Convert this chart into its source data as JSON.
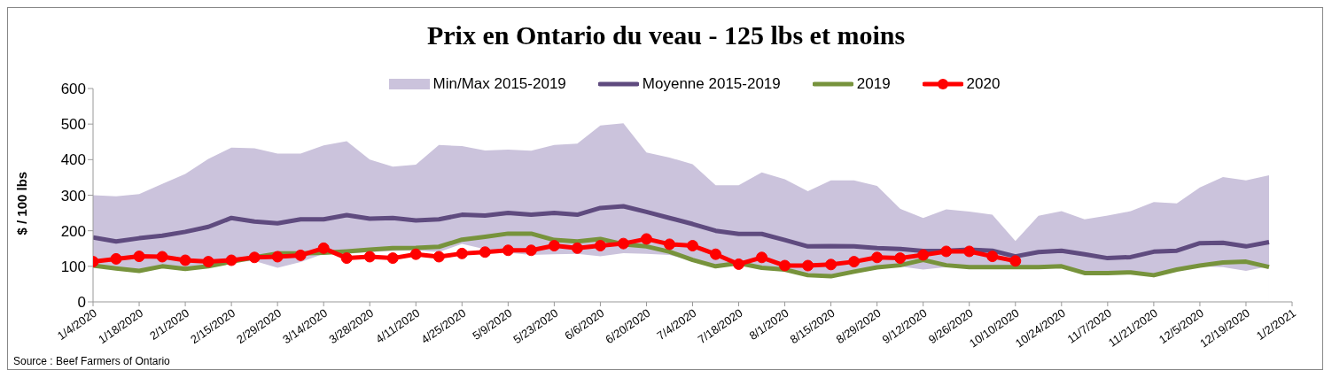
{
  "chart_data": {
    "type": "line",
    "title": "Prix en Ontario du veau - 125 lbs et moins",
    "ylabel": "$ / 100 lbs",
    "annotations": [
      "Source : Beef Farmers of Ontario"
    ],
    "x": [
      "2020-01-04",
      "2020-01-11",
      "2020-01-18",
      "2020-01-25",
      "2020-02-01",
      "2020-02-08",
      "2020-02-15",
      "2020-02-22",
      "2020-02-29",
      "2020-03-07",
      "2020-03-14",
      "2020-03-21",
      "2020-03-28",
      "2020-04-04",
      "2020-04-11",
      "2020-04-18",
      "2020-04-25",
      "2020-05-02",
      "2020-05-09",
      "2020-05-16",
      "2020-05-23",
      "2020-05-30",
      "2020-06-06",
      "2020-06-13",
      "2020-06-20",
      "2020-06-27",
      "2020-07-04",
      "2020-07-11",
      "2020-07-18",
      "2020-07-25",
      "2020-08-01",
      "2020-08-08",
      "2020-08-15",
      "2020-08-22",
      "2020-08-29",
      "2020-09-05",
      "2020-09-12",
      "2020-09-19",
      "2020-09-26",
      "2020-10-03",
      "2020-10-10",
      "2020-10-17",
      "2020-10-24",
      "2020-10-31",
      "2020-11-07",
      "2020-11-14",
      "2020-11-21",
      "2020-11-28",
      "2020-12-05",
      "2020-12-12",
      "2020-12-19",
      "2020-12-26"
    ],
    "series": [
      {
        "name": "Min/Max 2015-2019",
        "type": "area",
        "color": "#cbc3dc",
        "values": [
          300,
          297,
          303,
          332,
          360,
          402,
          434,
          432,
          417,
          417,
          440,
          452,
          400,
          380,
          386,
          441,
          438,
          426,
          428,
          425,
          441,
          445,
          496,
          502,
          420,
          406,
          387,
          328,
          328,
          364,
          345,
          311,
          342,
          342,
          326,
          262,
          236,
          260,
          254,
          245,
          171,
          242,
          255,
          232,
          243,
          255,
          281,
          277,
          322,
          351,
          342,
          356
        ]
      },
      {
        "type": "area",
        "color": "#ffffff",
        "values": [
          100,
          95,
          90,
          100,
          95,
          105,
          112,
          115,
          96,
          112,
          135,
          135,
          140,
          143,
          145,
          140,
          163,
          148,
          138,
          132,
          134,
          135,
          128,
          137,
          135,
          132,
          115,
          100,
          105,
          95,
          90,
          78,
          72,
          85,
          95,
          100,
          91,
          98,
          95,
          95,
          95,
          95,
          98,
          80,
          80,
          80,
          75,
          90,
          100,
          98,
          87,
          100
        ]
      },
      {
        "name": "Moyenne 2015-2019",
        "type": "line",
        "color": "#5f4b7f",
        "marker": "none",
        "values": [
          181,
          170,
          179,
          186,
          197,
          211,
          236,
          226,
          221,
          232,
          232,
          244,
          234,
          236,
          229,
          232,
          245,
          243,
          250,
          245,
          250,
          245,
          264,
          269,
          253,
          236,
          219,
          200,
          191,
          191,
          174,
          156,
          157,
          156,
          151,
          149,
          143,
          144,
          147,
          144,
          128,
          140,
          144,
          134,
          123,
          126,
          141,
          144,
          165,
          166,
          156,
          168
        ]
      },
      {
        "name": "2019",
        "type": "line",
        "color": "#77933c",
        "marker": "none",
        "values": [
          102,
          94,
          87,
          100,
          93,
          100,
          113,
          125,
          136,
          136,
          138,
          142,
          147,
          151,
          152,
          155,
          175,
          183,
          192,
          192,
          174,
          170,
          177,
          162,
          156,
          141,
          118,
          100,
          109,
          96,
          91,
          75,
          72,
          85,
          97,
          103,
          118,
          103,
          98,
          98,
          98,
          98,
          100,
          81,
          81,
          83,
          75,
          91,
          102,
          111,
          113,
          98
        ]
      },
      {
        "name": "2020",
        "type": "line",
        "color": "#ff0000",
        "marker": "circle",
        "values": [
          113,
          121,
          128,
          127,
          117,
          113,
          117,
          125,
          127,
          131,
          151,
          123,
          127,
          123,
          134,
          127,
          136,
          140,
          145,
          145,
          158,
          151,
          158,
          164,
          177,
          162,
          158,
          134,
          106,
          125,
          102,
          102,
          105,
          113,
          125,
          123,
          132,
          142,
          142,
          128,
          115,
          null,
          null,
          null,
          null,
          null,
          null,
          null,
          null,
          null,
          null,
          null
        ]
      }
    ],
    "xlim": [
      "2020-01-04",
      "2021-01-02"
    ],
    "xticks": [
      {
        "value": "2020-01-04",
        "label": "1/4/2020"
      },
      {
        "value": "2020-01-18",
        "label": "1/18/2020"
      },
      {
        "value": "2020-02-01",
        "label": "2/1/2020"
      },
      {
        "value": "2020-02-15",
        "label": "2/15/2020"
      },
      {
        "value": "2020-02-29",
        "label": "2/29/2020"
      },
      {
        "value": "2020-03-14",
        "label": "3/14/2020"
      },
      {
        "value": "2020-03-28",
        "label": "3/28/2020"
      },
      {
        "value": "2020-04-11",
        "label": "4/11/2020"
      },
      {
        "value": "2020-04-25",
        "label": "4/25/2020"
      },
      {
        "value": "2020-05-09",
        "label": "5/9/2020"
      },
      {
        "value": "2020-05-23",
        "label": "5/23/2020"
      },
      {
        "value": "2020-06-06",
        "label": "6/6/2020"
      },
      {
        "value": "2020-06-20",
        "label": "6/20/2020"
      },
      {
        "value": "2020-07-04",
        "label": "7/4/2020"
      },
      {
        "value": "2020-07-18",
        "label": "7/18/2020"
      },
      {
        "value": "2020-08-01",
        "label": "8/1/2020"
      },
      {
        "value": "2020-08-15",
        "label": "8/15/2020"
      },
      {
        "value": "2020-08-29",
        "label": "8/29/2020"
      },
      {
        "value": "2020-09-12",
        "label": "9/12/2020"
      },
      {
        "value": "2020-09-26",
        "label": "9/26/2020"
      },
      {
        "value": "2020-10-10",
        "label": "10/10/2020"
      },
      {
        "value": "2020-10-24",
        "label": "10/24/2020"
      },
      {
        "value": "2020-11-07",
        "label": "11/7/2020"
      },
      {
        "value": "2020-11-21",
        "label": "11/21/2020"
      },
      {
        "value": "2020-12-05",
        "label": "12/5/2020"
      },
      {
        "value": "2020-12-19",
        "label": "12/19/2020"
      },
      {
        "value": "2021-01-02",
        "label": "1/2/2021"
      }
    ],
    "ylim": [
      0,
      600
    ],
    "yticks": [
      0,
      100,
      200,
      300,
      400,
      500,
      600
    ],
    "grid": false,
    "legend": "top",
    "line_style": "solid"
  }
}
